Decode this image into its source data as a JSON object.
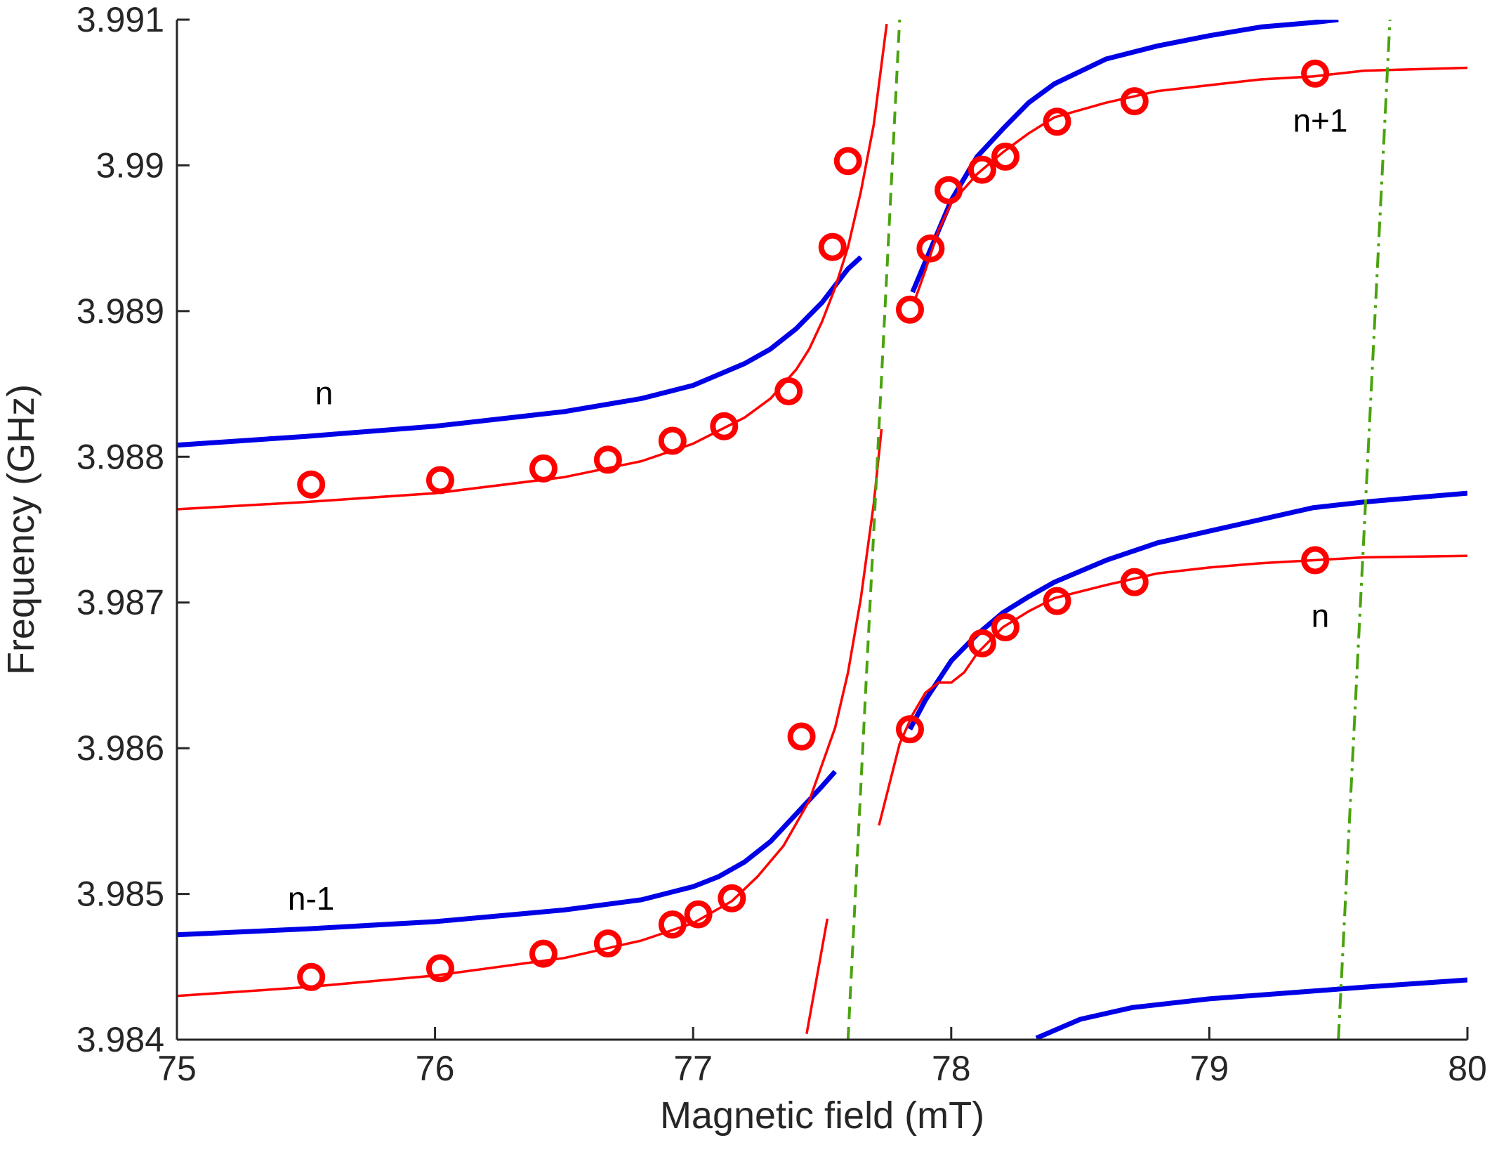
{
  "chart_data": {
    "type": "line",
    "title": "",
    "xlabel": "Magnetic field (mT)",
    "ylabel": "Frequency (GHz)",
    "xlim": [
      75,
      80
    ],
    "ylim": [
      3.984,
      3.991
    ],
    "xticks": [
      75,
      76,
      77,
      78,
      79,
      80
    ],
    "xtick_labels": [
      "75",
      "76",
      "77",
      "78",
      "79",
      "80"
    ],
    "yticks": [
      3.984,
      3.985,
      3.986,
      3.987,
      3.988,
      3.989,
      3.99,
      3.991
    ],
    "ytick_labels": [
      "3.984",
      "3.985",
      "3.986",
      "3.987",
      "3.988",
      "3.989",
      "3.99",
      "3.991"
    ],
    "grid": false,
    "colors": {
      "blue": "#0000e6",
      "red": "#ff0000",
      "green": "#4aa30e",
      "axis": "#262626"
    },
    "annotations": [
      {
        "text": "n",
        "x": 75.57,
        "y": 3.98842
      },
      {
        "text": "n-1",
        "x": 75.52,
        "y": 3.98495
      },
      {
        "text": "n+1",
        "x": 79.43,
        "y": 3.99029
      },
      {
        "text": "n",
        "x": 79.43,
        "y": 3.98689
      }
    ],
    "series": [
      {
        "name": "blue upper left",
        "color": "blue",
        "style": "thick",
        "x": [
          75.0,
          75.5,
          76.0,
          76.5,
          76.8,
          77.0,
          77.2,
          77.3,
          77.4,
          77.5,
          77.6,
          77.65
        ],
        "y": [
          3.98808,
          3.98814,
          3.98821,
          3.98831,
          3.9884,
          3.98849,
          3.98864,
          3.98874,
          3.98888,
          3.98906,
          3.98929,
          3.98937
        ]
      },
      {
        "name": "blue upper right",
        "color": "blue",
        "style": "thick",
        "x": [
          77.85,
          77.9,
          78.0,
          78.1,
          78.2,
          78.3,
          78.4,
          78.6,
          78.8,
          79.0,
          79.2,
          79.4,
          79.5
        ],
        "y": [
          3.98913,
          3.98934,
          3.98976,
          3.99006,
          3.99025,
          3.99043,
          3.99056,
          3.99073,
          3.99082,
          3.99089,
          3.99095,
          3.99098,
          3.991
        ]
      },
      {
        "name": "blue lower left",
        "color": "blue",
        "style": "thick",
        "x": [
          75.0,
          75.5,
          76.0,
          76.5,
          76.8,
          77.0,
          77.1,
          77.2,
          77.3,
          77.4,
          77.5,
          77.55
        ],
        "y": [
          3.98472,
          3.98476,
          3.98481,
          3.98489,
          3.98496,
          3.98505,
          3.98512,
          3.98522,
          3.98536,
          3.98555,
          3.98574,
          3.98584
        ]
      },
      {
        "name": "blue lower right",
        "color": "blue",
        "style": "thick",
        "x": [
          77.84,
          77.9,
          78.0,
          78.1,
          78.2,
          78.3,
          78.4,
          78.6,
          78.8,
          79.0,
          79.2,
          79.4,
          79.6,
          80.0
        ],
        "y": [
          3.98613,
          3.98633,
          3.9866,
          3.98678,
          3.98693,
          3.98704,
          3.98714,
          3.98729,
          3.98741,
          3.98749,
          3.98757,
          3.98765,
          3.98769,
          3.98775
        ]
      },
      {
        "name": "blue bottom",
        "color": "blue",
        "style": "thick",
        "x": [
          78.33,
          78.5,
          78.7,
          79.0,
          79.3,
          79.6,
          80.0
        ],
        "y": [
          3.98401,
          3.98414,
          3.98422,
          3.98428,
          3.98432,
          3.98436,
          3.98441
        ]
      },
      {
        "name": "red upper left",
        "color": "red",
        "style": "thin",
        "x": [
          75.0,
          75.5,
          76.0,
          76.5,
          76.8,
          77.0,
          77.2,
          77.3,
          77.4,
          77.45,
          77.5,
          77.55,
          77.6,
          77.65,
          77.7,
          77.75
        ],
        "y": [
          3.98764,
          3.98769,
          3.98775,
          3.98786,
          3.98797,
          3.98809,
          3.98827,
          3.9884,
          3.9886,
          3.98874,
          3.98893,
          3.98916,
          3.98944,
          3.98982,
          3.99028,
          3.99097
        ]
      },
      {
        "name": "red upper right",
        "color": "red",
        "style": "thin",
        "x": [
          77.86,
          77.9,
          77.95,
          78.0,
          78.1,
          78.2,
          78.3,
          78.4,
          78.6,
          78.8,
          79.0,
          79.2,
          79.4,
          79.6,
          80.0
        ],
        "y": [
          3.98908,
          3.98928,
          3.98955,
          3.98974,
          3.98994,
          3.99009,
          3.99022,
          3.99033,
          3.99043,
          3.99051,
          3.99055,
          3.99059,
          3.99061,
          3.99065,
          3.99067
        ]
      },
      {
        "name": "red lower left",
        "color": "red",
        "style": "thin",
        "x": [
          75.0,
          75.5,
          76.0,
          76.5,
          76.8,
          77.0,
          77.15,
          77.25,
          77.35,
          77.45,
          77.55,
          77.6,
          77.65,
          77.7,
          77.73
        ],
        "y": [
          3.9843,
          3.98436,
          3.98444,
          3.98456,
          3.98468,
          3.9848,
          3.98495,
          3.98512,
          3.98533,
          3.98564,
          3.98614,
          3.98652,
          3.98703,
          3.98768,
          3.98819
        ]
      },
      {
        "name": "red lower left short",
        "color": "red",
        "style": "thin",
        "x": [
          77.44,
          77.52
        ],
        "y": [
          3.98404,
          3.98483
        ]
      },
      {
        "name": "red lower right",
        "color": "red",
        "style": "thin",
        "x": [
          77.72,
          77.75,
          77.8,
          77.85,
          77.9,
          77.95,
          78.0,
          78.05,
          78.1,
          78.2,
          78.3,
          78.4,
          78.6,
          78.8,
          79.0,
          79.2,
          79.4,
          79.6,
          80.0
        ],
        "y": [
          3.98547,
          3.98568,
          3.98603,
          3.98623,
          3.98638,
          3.98645,
          3.98645,
          3.98652,
          3.98665,
          3.98683,
          3.98694,
          3.98703,
          3.98712,
          3.9872,
          3.98724,
          3.98727,
          3.98729,
          3.98731,
          3.98732
        ]
      },
      {
        "name": "green dashed",
        "color": "green",
        "style": "dashed",
        "x": [
          77.6,
          77.8
        ],
        "y": [
          3.984,
          3.991
        ]
      },
      {
        "name": "green dash-dot",
        "color": "green",
        "style": "dashdot",
        "x": [
          79.5,
          79.7
        ],
        "y": [
          3.984,
          3.991
        ]
      },
      {
        "name": "measured points",
        "color": "red",
        "style": "markers",
        "x": [
          75.52,
          76.02,
          76.42,
          76.67,
          76.92,
          77.12,
          77.37,
          77.54,
          77.6,
          77.84,
          77.92,
          77.99,
          78.12,
          78.21,
          78.41,
          78.71,
          79.41,
          75.52,
          76.02,
          76.42,
          76.67,
          76.92,
          77.02,
          77.15,
          77.42,
          77.84,
          78.12,
          78.21,
          78.41,
          78.71,
          79.41
        ],
        "y": [
          3.98781,
          3.98784,
          3.98792,
          3.98798,
          3.98811,
          3.98821,
          3.98845,
          3.98944,
          3.99003,
          3.98901,
          3.98943,
          3.98983,
          3.98997,
          3.99006,
          3.9903,
          3.99044,
          3.99063,
          3.98443,
          3.98449,
          3.98459,
          3.98466,
          3.98479,
          3.98486,
          3.98497,
          3.98608,
          3.98613,
          3.98672,
          3.98683,
          3.98701,
          3.98714,
          3.98729
        ]
      }
    ]
  }
}
